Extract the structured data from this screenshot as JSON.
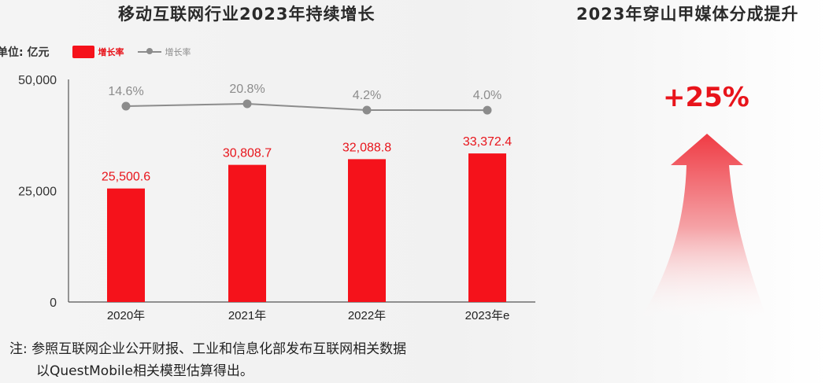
{
  "left_title": "移动互联网行业2023年持续增长",
  "right_title": "2023年穿山甲媒体分成提升",
  "legend": {
    "unit": "单位: 亿元",
    "bar_label": "增长率",
    "line_label": "增长率"
  },
  "colors": {
    "bar": "#f5121b",
    "bar_label": "#e8141b",
    "line": "#8c8c8c"
  },
  "chart_data": {
    "type": "bar",
    "categories": [
      "2020年",
      "2021年",
      "2022年",
      "2023年e"
    ],
    "series": [
      {
        "values": [
          25500.6,
          30808.7,
          32088.8,
          33372.4
        ],
        "labels": [
          "25,500.6",
          "30,808.7",
          "32,088.8",
          "33,372.4"
        ]
      },
      {
        "type": "line",
        "values": [
          14.6,
          20.8,
          4.2,
          4.0
        ],
        "labels": [
          "14.6%",
          "20.8%",
          "4.2%",
          "4.0%"
        ]
      }
    ],
    "yticks": [
      "0",
      "25,000",
      "50,000"
    ],
    "ylim": [
      0,
      50000
    ]
  },
  "note_line1": "注: 参照互联网企业公开财报、工业和信息化部发布互联网相关数据",
  "note_line2": "以QuestMobile相关模型估算得出。",
  "highlight_value": "+25%"
}
